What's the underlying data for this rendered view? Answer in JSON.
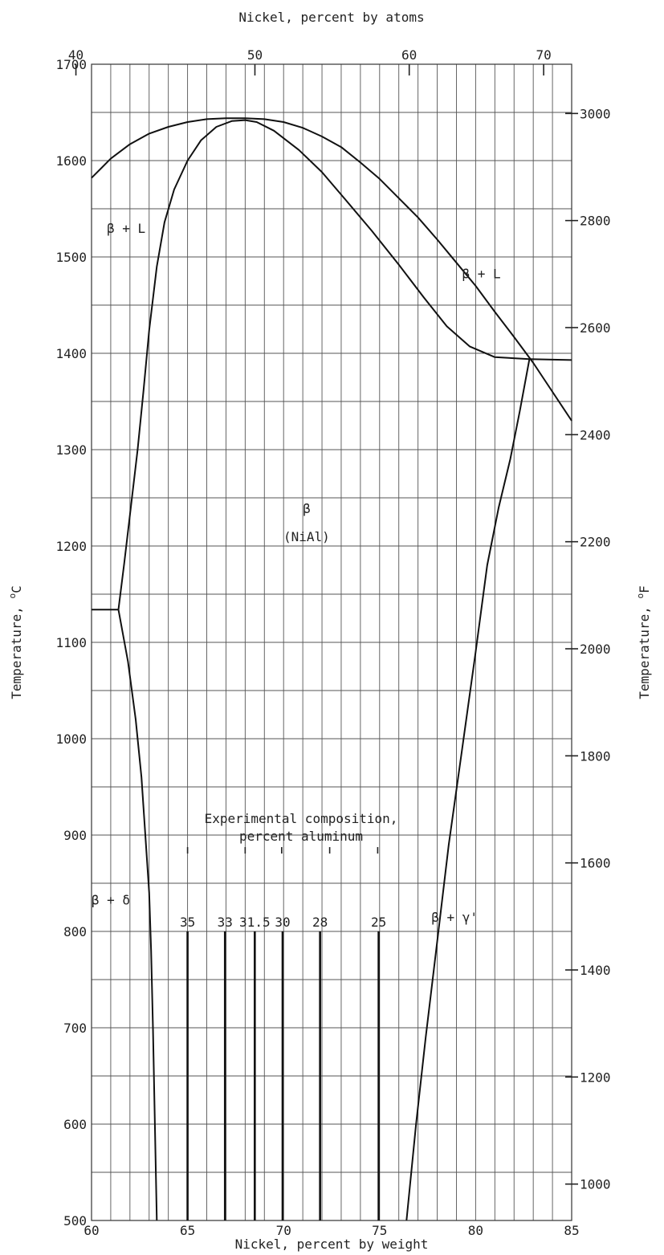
{
  "chart_data": {
    "type": "line",
    "title": "",
    "top_axis": {
      "label": "Nickel, percent by atoms",
      "ticks": [
        {
          "value": 40,
          "label": "40"
        },
        {
          "value": 50,
          "label": "50"
        },
        {
          "value": 60,
          "label": "60"
        },
        {
          "value": 70,
          "label": "70"
        }
      ]
    },
    "x_axis": {
      "label": "Nickel, percent by weight",
      "range": [
        60,
        85
      ],
      "ticks": [
        60,
        65,
        70,
        75,
        80,
        85
      ],
      "tick_labels": [
        "60",
        "65",
        "70",
        "75",
        "80",
        "85"
      ]
    },
    "y_axis": {
      "label": "Temperature, ",
      "label_unit": "C",
      "label_deg": "o",
      "range": [
        500,
        1700
      ],
      "ticks": [
        500,
        600,
        700,
        800,
        900,
        1000,
        1100,
        1200,
        1300,
        1400,
        1500,
        1600,
        1700
      ],
      "tick_labels": [
        "500",
        "600",
        "700",
        "800",
        "900",
        "1000",
        "1100",
        "1200",
        "1300",
        "1400",
        "1500",
        "1600",
        "1700"
      ]
    },
    "y2_axis": {
      "label": "Temperature, ",
      "label_unit": "F",
      "label_deg": "o",
      "ticks": [
        1000,
        1200,
        1400,
        1600,
        1800,
        2000,
        2200,
        2400,
        2600,
        2800,
        3000
      ],
      "tick_labels": [
        "1000",
        "1200",
        "1400",
        "1600",
        "1800",
        "2000",
        "2200",
        "2400",
        "2600",
        "2800",
        "3000"
      ]
    },
    "grid": true,
    "series": [
      {
        "points": [
          [
            60,
            1582
          ],
          [
            61,
            1602
          ],
          [
            62,
            1617
          ],
          [
            63,
            1628
          ],
          [
            64,
            1635
          ],
          [
            65,
            1640
          ],
          [
            66,
            1643
          ],
          [
            67,
            1644
          ],
          [
            68,
            1644
          ],
          [
            69,
            1643
          ],
          [
            70,
            1640
          ],
          [
            71,
            1634
          ],
          [
            72,
            1625
          ],
          [
            73,
            1614
          ],
          [
            74,
            1598
          ],
          [
            75,
            1581
          ],
          [
            76,
            1561
          ],
          [
            77,
            1541
          ],
          [
            78,
            1518
          ],
          [
            79,
            1494
          ],
          [
            80,
            1470
          ],
          [
            81,
            1443
          ],
          [
            82,
            1417
          ],
          [
            83,
            1390
          ],
          [
            84,
            1360
          ],
          [
            85,
            1330
          ]
        ]
      },
      {
        "points": [
          [
            61.4,
            1134
          ],
          [
            61.7,
            1182
          ],
          [
            62.0,
            1232
          ],
          [
            62.4,
            1300
          ],
          [
            62.7,
            1360
          ],
          [
            63.0,
            1424
          ],
          [
            63.4,
            1490
          ],
          [
            63.8,
            1536
          ],
          [
            64.3,
            1570
          ],
          [
            65.0,
            1600
          ],
          [
            65.7,
            1621
          ],
          [
            66.5,
            1635
          ],
          [
            67.3,
            1641
          ],
          [
            68.0,
            1642
          ],
          [
            68.6,
            1640
          ],
          [
            69.5,
            1631
          ],
          [
            70.8,
            1611
          ],
          [
            72.0,
            1588
          ],
          [
            73.2,
            1560
          ],
          [
            74.6,
            1527
          ],
          [
            76.0,
            1492
          ],
          [
            77.3,
            1458
          ],
          [
            78.5,
            1428
          ],
          [
            79.7,
            1407
          ],
          [
            81.0,
            1396
          ],
          [
            82.8,
            1394
          ]
        ]
      },
      {
        "points": [
          [
            82.8,
            1394
          ],
          [
            85,
            1393
          ]
        ]
      },
      {
        "points": [
          [
            60,
            1134
          ],
          [
            61.4,
            1134
          ]
        ]
      },
      {
        "points": [
          [
            61.4,
            1134
          ],
          [
            61.9,
            1080
          ],
          [
            62.3,
            1020
          ],
          [
            62.6,
            960
          ],
          [
            62.8,
            900
          ],
          [
            63.0,
            840
          ],
          [
            63.1,
            780
          ],
          [
            63.2,
            700
          ],
          [
            63.3,
            600
          ],
          [
            63.4,
            500
          ]
        ]
      },
      {
        "points": [
          [
            82.8,
            1394
          ],
          [
            82.3,
            1340
          ],
          [
            81.8,
            1290
          ],
          [
            81.2,
            1240
          ],
          [
            80.6,
            1180
          ],
          [
            80.0,
            1090
          ],
          [
            79.3,
            990
          ],
          [
            78.6,
            890
          ],
          [
            78.0,
            790
          ],
          [
            77.4,
            690
          ],
          [
            76.9,
            600
          ],
          [
            76.4,
            500
          ]
        ]
      }
    ],
    "compositions": {
      "title_line1": "Experimental composition,",
      "title_line2": "percent aluminum",
      "lines": [
        {
          "label": "35",
          "x": 65.0
        },
        {
          "label": "33",
          "x": 66.95
        },
        {
          "label": "31.5",
          "x": 68.5
        },
        {
          "label": "30",
          "x": 69.95
        },
        {
          "label": "28",
          "x": 71.9
        },
        {
          "label": "25",
          "x": 74.95
        }
      ],
      "top_temp": 800
    },
    "regions": [
      {
        "label": "β + L",
        "x": 61.8,
        "y": 1525
      },
      {
        "label": "β + L",
        "x": 80.3,
        "y": 1478
      },
      {
        "label": "β",
        "x": 71.2,
        "y": 1234
      },
      {
        "label": "(NiAl)",
        "x": 71.2,
        "y": 1205
      },
      {
        "label": "β + δ",
        "x": 61.0,
        "y": 828
      },
      {
        "label": "β + γ'",
        "x": 78.9,
        "y": 810
      }
    ]
  }
}
